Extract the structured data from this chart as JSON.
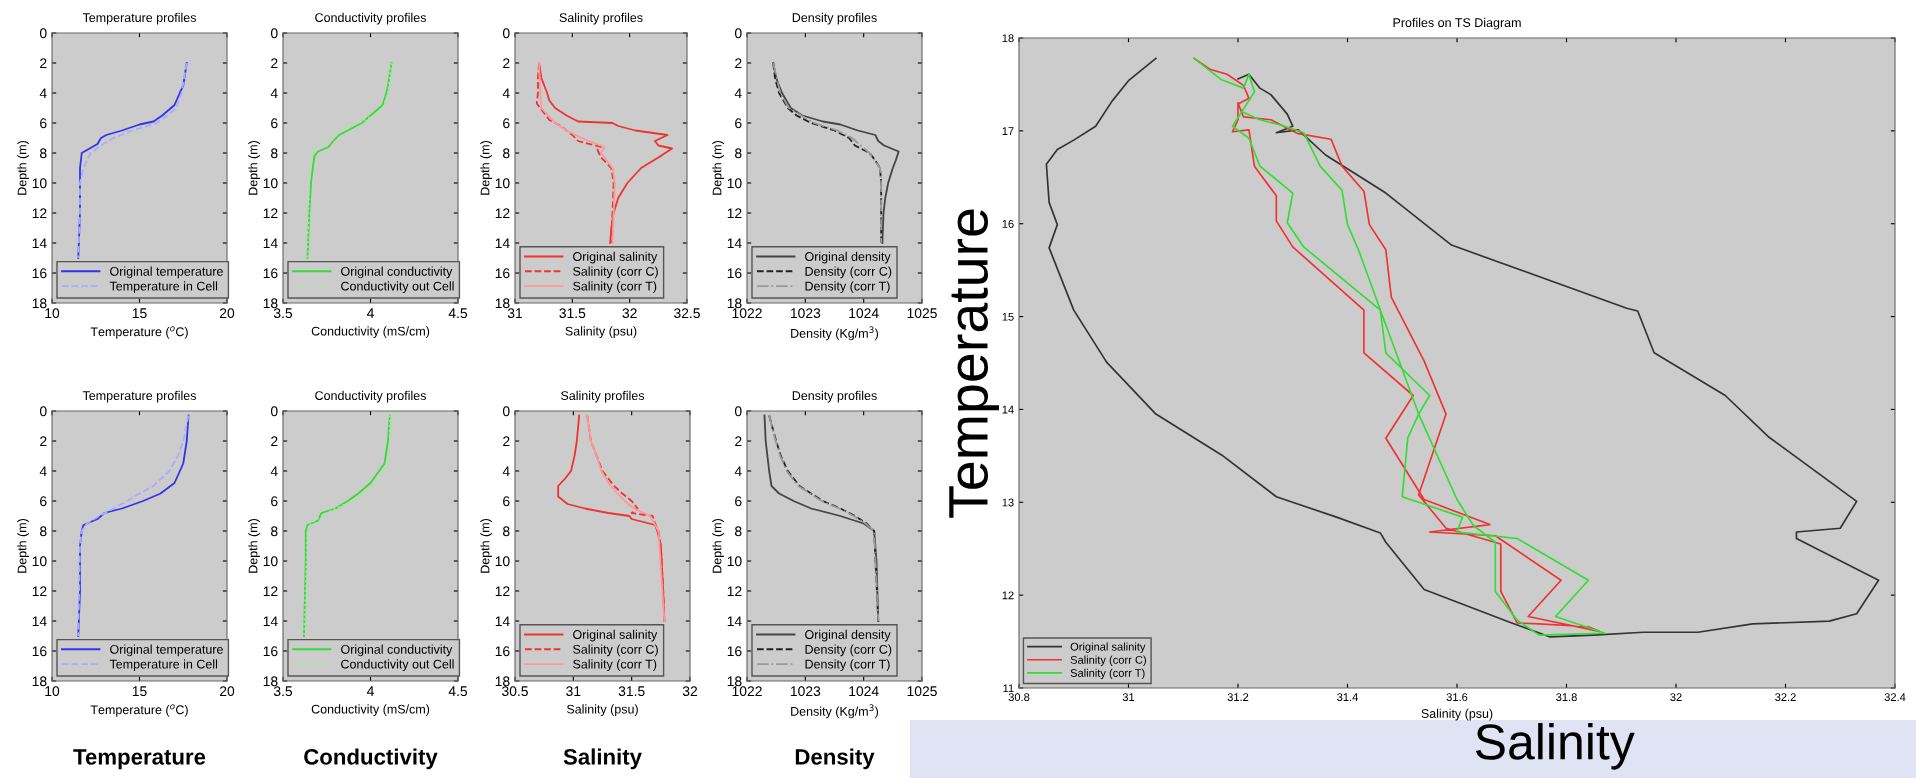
{
  "chart_data": [
    {
      "type": "line",
      "title": "Temperature profiles",
      "xlabel": "Temperature ($^{o}$C)",
      "ylabel": "Depth (m)",
      "xlim": [
        10,
        20
      ],
      "xticks": [
        10,
        15,
        20
      ],
      "ylim": [
        18,
        0
      ],
      "yticks": [
        0,
        2,
        4,
        6,
        8,
        10,
        12,
        14,
        16,
        18
      ],
      "legend": "bottom left",
      "series": [
        {
          "name": "Original temperature",
          "color": "#3333ee",
          "line_style": "solid",
          "x": [
            17.7,
            17.5,
            17.3,
            17.0,
            16.3,
            15.8,
            15.0,
            14.0,
            13.1,
            12.8,
            12.6,
            12.0,
            11.7,
            11.6,
            11.6,
            11.6,
            11.5
          ],
          "values": [
            2,
            3.5,
            4,
            4.8,
            5.5,
            5.9,
            6.1,
            6.5,
            6.8,
            7,
            7.4,
            7.8,
            8,
            9,
            10,
            12,
            15
          ]
        },
        {
          "name": "Temperature in Cell",
          "color": "#aaaaff",
          "line_style": "dashed",
          "x": [
            17.7,
            17.4,
            17.1,
            16.6,
            16.0,
            14.6,
            13.5,
            12.8,
            12.2,
            11.8,
            11.6,
            11.6,
            11.5
          ],
          "values": [
            2,
            4,
            5,
            5.5,
            6,
            6.5,
            7,
            7.5,
            8,
            9,
            10,
            12,
            15
          ]
        }
      ]
    },
    {
      "type": "line",
      "title": "Conductivity profiles",
      "xlabel": "Conductivity (mS/cm)",
      "ylabel": "Depth (m)",
      "xlim": [
        3.5,
        4.5
      ],
      "xticks": [
        3.5,
        4,
        4.5
      ],
      "ylim": [
        18,
        0
      ],
      "yticks": [
        0,
        2,
        4,
        6,
        8,
        10,
        12,
        14,
        16,
        18
      ],
      "legend": "bottom left",
      "series": [
        {
          "name": "Original conductivity",
          "color": "#33dd33",
          "line_style": "solid",
          "x": [
            4.12,
            4.1,
            4.09,
            4.07,
            4.0,
            3.95,
            3.87,
            3.82,
            3.78,
            3.76,
            3.7,
            3.68,
            3.67,
            3.66,
            3.65,
            3.64
          ],
          "values": [
            2,
            3.5,
            4,
            4.8,
            5.5,
            6,
            6.5,
            6.8,
            7.3,
            7.6,
            7.9,
            8.2,
            9,
            10,
            12,
            15
          ]
        },
        {
          "name": "Conductivity out Cell",
          "color": "#99ee99",
          "line_style": "dotted",
          "x": [
            4.12,
            4.1,
            4.07,
            4.02,
            3.93,
            3.82,
            3.73,
            3.7,
            3.67,
            3.65,
            3.65,
            3.64
          ],
          "values": [
            2,
            4,
            5,
            5.5,
            6,
            6.5,
            7,
            7.5,
            8,
            9,
            10,
            15
          ]
        }
      ]
    },
    {
      "type": "line",
      "title": "Salinity profiles",
      "xlabel": "Salinity (psu)",
      "ylabel": "Depth (m)",
      "xlim": [
        31,
        32.5
      ],
      "xticks": [
        31,
        31.5,
        32,
        32.5
      ],
      "ylim": [
        18,
        0
      ],
      "yticks": [
        0,
        2,
        4,
        6,
        8,
        10,
        12,
        14,
        16,
        18
      ],
      "legend": "bottom left",
      "series": [
        {
          "name": "Original salinity",
          "color": "#ee3333",
          "line_style": "solid",
          "x": [
            31.21,
            31.23,
            31.28,
            31.3,
            31.35,
            31.45,
            31.55,
            31.85,
            31.9,
            32.05,
            32.33,
            32.22,
            32.25,
            32.37,
            32.25,
            32.1,
            31.98,
            31.9,
            31.86,
            31.84,
            31.83
          ],
          "values": [
            2,
            3,
            4,
            4.5,
            5,
            5.5,
            5.9,
            6,
            6.2,
            6.5,
            6.8,
            7.2,
            7.5,
            7.7,
            8.3,
            9,
            10,
            11,
            12,
            13,
            14
          ]
        },
        {
          "name": "Salinity (corr C)",
          "color": "#ee3333",
          "line_style": "dashed",
          "x": [
            31.21,
            31.2,
            31.2,
            31.19,
            31.25,
            31.3,
            31.4,
            31.5,
            31.55,
            31.75,
            31.72,
            31.75,
            31.84,
            31.86,
            31.85,
            31.84
          ],
          "values": [
            2,
            3,
            4,
            4.7,
            5.3,
            5.8,
            6.2,
            6.8,
            7.2,
            7.6,
            7.8,
            8.3,
            9,
            10,
            12,
            14
          ]
        },
        {
          "name": "Salinity (corr T)",
          "color": "#ff9999",
          "line_style": "solid",
          "x": [
            31.21,
            31.22,
            31.23,
            31.35,
            31.45,
            31.58,
            31.78,
            31.75,
            31.85,
            31.87,
            31.86,
            31.85
          ],
          "values": [
            2,
            4,
            5,
            6,
            6.5,
            7,
            7.6,
            8,
            9,
            10,
            12,
            14
          ]
        }
      ]
    },
    {
      "type": "line",
      "title": "Density profiles",
      "xlabel": "Density (Kg/m$^{3}$)",
      "ylabel": "Depth (m)",
      "xlim": [
        1022,
        1025
      ],
      "xticks": [
        1022,
        1023,
        1024,
        1025
      ],
      "ylim": [
        18,
        0
      ],
      "yticks": [
        0,
        2,
        4,
        6,
        8,
        10,
        12,
        14,
        16,
        18
      ],
      "legend": "bottom left",
      "series": [
        {
          "name": "Original density",
          "color": "#444444",
          "line_style": "solid",
          "x": [
            1022.45,
            1022.5,
            1022.6,
            1022.75,
            1022.95,
            1023.3,
            1023.6,
            1023.9,
            1024.2,
            1024.25,
            1024.35,
            1024.6,
            1024.55,
            1024.5,
            1024.42,
            1024.37,
            1024.34,
            1024.32
          ],
          "values": [
            2,
            3,
            4,
            5,
            5.5,
            5.9,
            6.1,
            6.5,
            6.8,
            7.2,
            7.5,
            7.9,
            8.5,
            9,
            10,
            11,
            12,
            14
          ]
        },
        {
          "name": "Density (corr C)",
          "color": "#222222",
          "line_style": "dashed",
          "x": [
            1022.45,
            1022.48,
            1022.55,
            1022.7,
            1022.85,
            1023.1,
            1023.5,
            1023.75,
            1023.85,
            1024.1,
            1024.2,
            1024.28,
            1024.3,
            1024.3
          ],
          "values": [
            2,
            3,
            4,
            5,
            5.5,
            6,
            6.5,
            7,
            7.5,
            8,
            8.5,
            9,
            10,
            14
          ]
        },
        {
          "name": "Density (corr T)",
          "color": "#999999",
          "line_style": "dashdot",
          "x": [
            1022.45,
            1022.57,
            1022.72,
            1023.15,
            1023.55,
            1023.8,
            1023.95,
            1024.1,
            1024.28,
            1024.3,
            1024.3
          ],
          "values": [
            2,
            4,
            5,
            6,
            6.5,
            7,
            7.5,
            8,
            9,
            10,
            14
          ]
        }
      ]
    },
    {
      "type": "line",
      "title": "Temperature profiles",
      "xlabel": "Temperature ($^{o}$C)",
      "ylabel": "Depth (m)",
      "xlim": [
        10,
        20
      ],
      "xticks": [
        10,
        15,
        20
      ],
      "ylim": [
        18,
        0
      ],
      "yticks": [
        0,
        2,
        4,
        6,
        8,
        10,
        12,
        14,
        16,
        18
      ],
      "legend": "bottom left",
      "annotations": [
        "Temperature"
      ],
      "series": [
        {
          "name": "Original temperature",
          "color": "#3333ee",
          "line_style": "solid",
          "x": [
            17.8,
            17.7,
            17.5,
            17.0,
            16.2,
            15.2,
            14.0,
            13.0,
            12.6,
            11.8,
            11.7,
            11.6,
            11.6,
            11.5
          ],
          "values": [
            0.3,
            2,
            3.5,
            4.8,
            5.5,
            6,
            6.5,
            6.8,
            7.2,
            7.6,
            8,
            9,
            12,
            15
          ]
        },
        {
          "name": "Temperature in Cell",
          "color": "#aaaaff",
          "line_style": "dashed",
          "x": [
            17.8,
            17.5,
            17.2,
            16.7,
            15.8,
            15.0,
            14.3,
            13.5,
            12.7,
            12.0,
            11.7,
            11.6,
            11.5
          ],
          "values": [
            0.3,
            2,
            3,
            4,
            5,
            5.5,
            6,
            6.5,
            7,
            7.5,
            8,
            9,
            15
          ]
        }
      ]
    },
    {
      "type": "line",
      "title": "Conductivity profiles",
      "xlabel": "Conductivity (mS/cm)",
      "ylabel": "Depth (m)",
      "xlim": [
        3.5,
        4.5
      ],
      "xticks": [
        3.5,
        4,
        4.5
      ],
      "ylim": [
        18,
        0
      ],
      "yticks": [
        0,
        2,
        4,
        6,
        8,
        10,
        12,
        14,
        16,
        18
      ],
      "legend": "bottom left",
      "annotations": [
        "Conductivity"
      ],
      "series": [
        {
          "name": "Original conductivity",
          "color": "#33dd33",
          "line_style": "solid",
          "x": [
            4.11,
            4.1,
            4.08,
            4.0,
            3.93,
            3.87,
            3.8,
            3.72,
            3.7,
            3.64,
            3.63,
            3.63,
            3.62
          ],
          "values": [
            0.3,
            2,
            3.5,
            4.8,
            5.5,
            6,
            6.5,
            6.8,
            7.3,
            7.6,
            8,
            10,
            15
          ]
        },
        {
          "name": "Conductivity out Cell",
          "color": "#99ee99",
          "line_style": "dotted",
          "x": [
            4.11,
            4.11,
            4.1,
            4.05,
            3.97,
            3.9,
            3.8,
            3.72,
            3.66,
            3.64,
            3.62
          ],
          "values": [
            0.3,
            2,
            3.5,
            4.5,
            5.5,
            6,
            6.5,
            7,
            7.5,
            8,
            15
          ]
        }
      ]
    },
    {
      "type": "line",
      "title": "Salinity profiles",
      "xlabel": "Salinity (psu)",
      "ylabel": "Depth (m)",
      "xlim": [
        30.5,
        32
      ],
      "xticks": [
        30.5,
        31,
        31.5,
        32
      ],
      "ylim": [
        18,
        0
      ],
      "yticks": [
        0,
        2,
        4,
        6,
        8,
        10,
        12,
        14,
        16,
        18
      ],
      "legend": "bottom left",
      "annotations": [
        "Salinity"
      ],
      "series": [
        {
          "name": "Original salinity",
          "color": "#ee3333",
          "line_style": "solid",
          "x": [
            31.05,
            31.03,
            31.01,
            30.98,
            30.93,
            30.87,
            30.87,
            30.95,
            31.1,
            31.3,
            31.48,
            31.5,
            31.7,
            31.72,
            31.75,
            31.77,
            31.78
          ],
          "values": [
            0.3,
            2,
            3,
            4,
            4.5,
            5,
            5.7,
            6.2,
            6.5,
            6.8,
            7,
            7.2,
            7.6,
            8,
            9,
            12,
            14
          ]
        },
        {
          "name": "Salinity (corr C)",
          "color": "#ee3333",
          "line_style": "dashed",
          "x": [
            31.12,
            31.15,
            31.2,
            31.25,
            31.3,
            31.35,
            31.42,
            31.5,
            31.55,
            31.5,
            31.68,
            31.7,
            31.73,
            31.75,
            31.77,
            31.78
          ],
          "values": [
            0.3,
            2,
            3,
            4,
            4.5,
            5,
            5.5,
            6,
            6.5,
            6.8,
            7,
            7.5,
            8,
            9,
            12,
            14
          ]
        },
        {
          "name": "Salinity (corr T)",
          "color": "#ff9999",
          "line_style": "solid",
          "x": [
            31.12,
            31.15,
            31.2,
            31.24,
            31.32,
            31.44,
            31.52,
            31.66,
            31.73,
            31.78
          ],
          "values": [
            0.3,
            2,
            3,
            4,
            5,
            6,
            6.5,
            7,
            8,
            14
          ]
        }
      ]
    },
    {
      "type": "line",
      "title": "Density profiles",
      "xlabel": "Density (Kg/m$^{3}$)",
      "ylabel": "Depth (m)",
      "xlim": [
        1022,
        1025
      ],
      "xticks": [
        1022,
        1023,
        1024,
        1025
      ],
      "ylim": [
        18,
        0
      ],
      "yticks": [
        0,
        2,
        4,
        6,
        8,
        10,
        12,
        14,
        16,
        18
      ],
      "legend": "bottom left",
      "annotations": [
        "Density"
      ],
      "series": [
        {
          "name": "Original density",
          "color": "#444444",
          "line_style": "solid",
          "x": [
            1022.3,
            1022.32,
            1022.38,
            1022.42,
            1022.55,
            1022.8,
            1023.1,
            1023.6,
            1024.0,
            1024.18,
            1024.22,
            1024.25
          ],
          "values": [
            0.3,
            2,
            4,
            5,
            5.5,
            6,
            6.5,
            7,
            7.5,
            8,
            10,
            14
          ]
        },
        {
          "name": "Density (corr C)",
          "color": "#222222",
          "line_style": "dashed",
          "x": [
            1022.38,
            1022.5,
            1022.58,
            1022.7,
            1022.9,
            1023.3,
            1023.6,
            1023.85,
            1024.05,
            1024.18,
            1024.25
          ],
          "values": [
            0.3,
            2,
            3,
            4,
            5,
            6,
            6.5,
            7,
            7.5,
            8,
            14
          ]
        },
        {
          "name": "Density (corr T)",
          "color": "#999999",
          "line_style": "dashdot",
          "x": [
            1022.38,
            1022.49,
            1022.57,
            1022.68,
            1022.88,
            1023.28,
            1023.58,
            1023.83,
            1024.03,
            1024.18,
            1024.25
          ],
          "values": [
            0.3,
            2,
            3,
            4,
            5,
            6,
            6.5,
            7,
            7.5,
            8,
            14
          ]
        }
      ]
    },
    {
      "type": "line",
      "title": "Profiles on TS Diagram",
      "xlabel": "Salinity (psu)",
      "ylabel": "Temperature",
      "xlim": [
        30.8,
        32.4
      ],
      "xticks": [
        30.8,
        31,
        31.2,
        31.4,
        31.6,
        31.8,
        32,
        32.2,
        32.4
      ],
      "ylim": [
        11,
        18
      ],
      "yticks": [
        11,
        12,
        13,
        14,
        15,
        16,
        17,
        18
      ],
      "legend": "bottom left",
      "annotations": [
        "Salinity"
      ],
      "series": [
        {
          "name": "Original salinity",
          "color": "#333333",
          "line_style": "solid",
          "x": [
            31.05,
            31.0,
            30.97,
            30.94,
            30.9,
            30.87,
            30.85,
            30.855,
            30.87,
            30.855,
            30.9,
            30.96,
            31.05,
            31.17,
            31.27,
            31.38,
            31.46,
            31.47,
            31.54,
            31.7,
            31.77,
            31.85,
            31.94,
            32.04,
            32.14,
            32.28,
            32.33,
            32.37,
            32.22,
            32.22,
            32.3,
            32.33,
            32.17,
            32.09,
            31.96,
            31.93,
            31.91,
            31.59,
            31.47,
            31.36,
            31.31,
            31.27,
            31.3,
            31.29,
            31.27,
            31.26,
            31.24,
            31.22,
            31.2
          ],
          "values": [
            17.78,
            17.54,
            17.32,
            17.05,
            16.9,
            16.8,
            16.64,
            16.23,
            15.99,
            15.74,
            15.07,
            14.51,
            13.95,
            13.51,
            13.06,
            12.84,
            12.67,
            12.57,
            12.06,
            11.7,
            11.55,
            11.57,
            11.6,
            11.6,
            11.69,
            11.72,
            11.8,
            12.16,
            12.61,
            12.68,
            12.72,
            13.01,
            13.7,
            14.15,
            14.61,
            15.06,
            15.09,
            15.77,
            16.33,
            16.74,
            17.01,
            16.98,
            17.05,
            17.18,
            17.32,
            17.39,
            17.46,
            17.61,
            17.56
          ]
        },
        {
          "name": "Salinity (corr C)",
          "color": "#ee3333",
          "line_style": "solid",
          "x": [
            31.12,
            31.15,
            31.18,
            31.21,
            31.22,
            31.2,
            31.2,
            31.19,
            31.22,
            31.23,
            31.27,
            31.27,
            31.3,
            31.43,
            31.43,
            31.52,
            31.47,
            31.54,
            31.66,
            31.55,
            31.67,
            31.79,
            31.73,
            31.86,
            31.84,
            31.75,
            31.71,
            31.68,
            31.68,
            31.58,
            31.53,
            31.58,
            31.54,
            31.48,
            31.47,
            31.44,
            31.43,
            31.39,
            31.37,
            31.31,
            31.26,
            31.21,
            31.2
          ],
          "values": [
            17.78,
            17.66,
            17.61,
            17.49,
            17.35,
            17.29,
            17.12,
            16.99,
            17.01,
            16.62,
            16.3,
            16.03,
            15.75,
            15.07,
            14.61,
            14.15,
            13.69,
            13.03,
            12.76,
            12.68,
            12.64,
            12.16,
            11.77,
            11.61,
            11.66,
            11.69,
            11.7,
            12.04,
            12.55,
            12.72,
            13.08,
            13.95,
            14.52,
            15.21,
            15.72,
            15.99,
            16.35,
            16.62,
            16.91,
            16.97,
            17.12,
            17.15,
            17.3
          ]
        },
        {
          "name": "Salinity (corr T)",
          "color": "#33dd33",
          "line_style": "solid",
          "x": [
            31.12,
            31.17,
            31.21,
            31.22,
            31.23,
            31.19,
            31.22,
            31.24,
            31.3,
            31.29,
            31.32,
            31.46,
            31.47,
            31.55,
            31.53,
            31.51,
            31.5,
            31.61,
            31.6,
            31.71,
            31.84,
            31.78,
            31.87,
            31.75,
            31.71,
            31.67,
            31.67,
            31.63,
            31.6,
            31.53,
            31.46,
            31.42,
            31.4,
            31.39,
            31.35,
            31.32,
            31.28,
            31.24,
            31.21
          ],
          "values": [
            17.78,
            17.55,
            17.46,
            17.61,
            17.42,
            17.05,
            16.92,
            16.62,
            16.33,
            16.01,
            15.75,
            15.07,
            14.61,
            14.15,
            13.95,
            13.69,
            13.06,
            12.84,
            12.68,
            12.61,
            12.16,
            11.77,
            11.59,
            11.57,
            11.73,
            12.04,
            12.57,
            12.75,
            13.03,
            13.95,
            15.07,
            15.72,
            15.99,
            16.36,
            16.62,
            16.98,
            17.06,
            17.12,
            17.2
          ]
        }
      ]
    }
  ]
}
